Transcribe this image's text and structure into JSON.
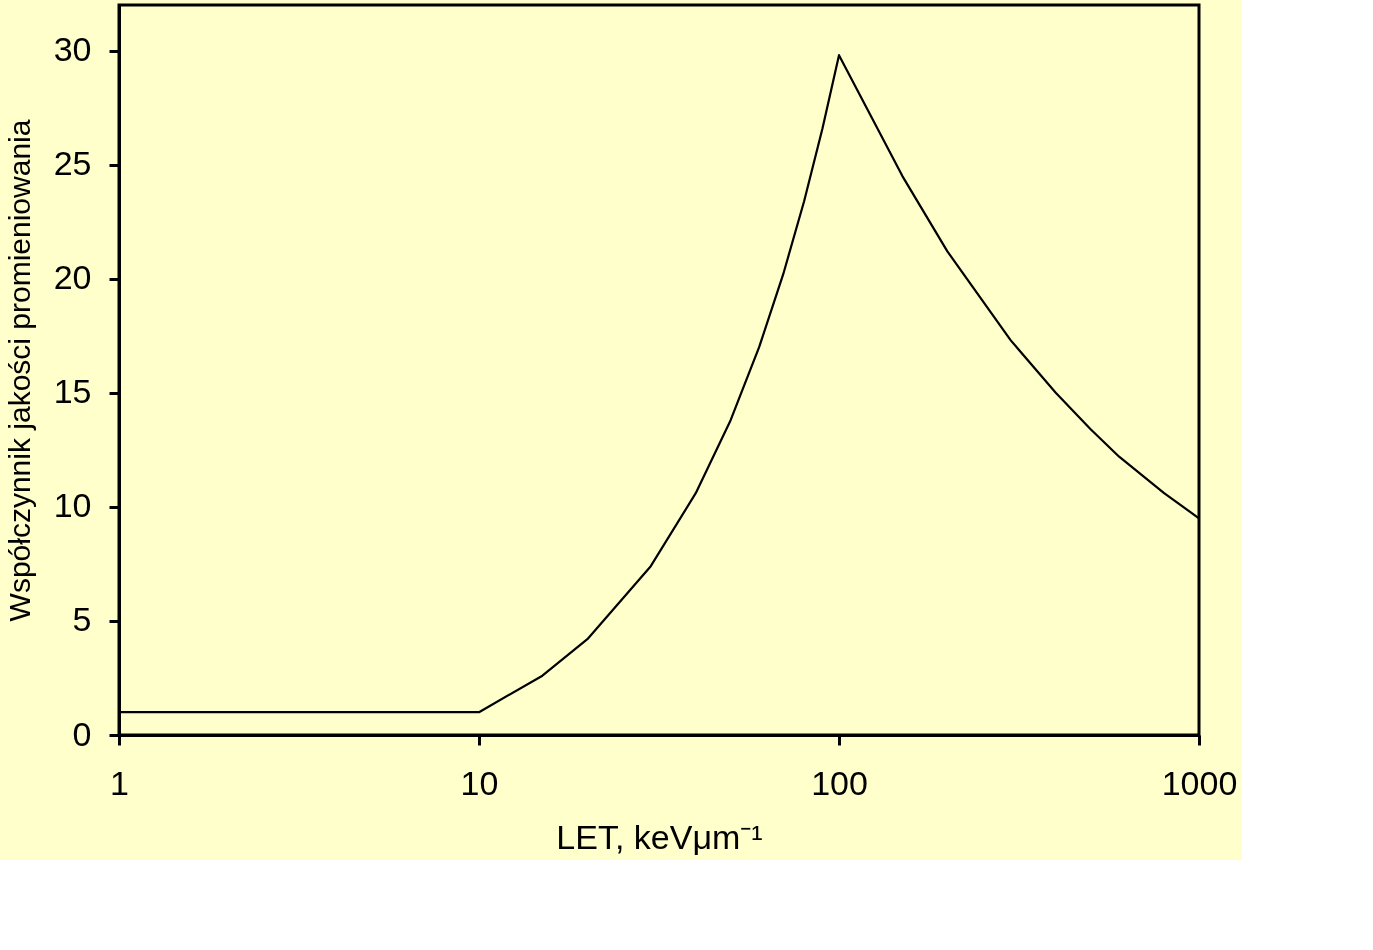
{
  "chart_data": {
    "type": "line",
    "xlabel": "LET,  keVμm⁻¹",
    "ylabel": "Współczynnik jakości promieniowania",
    "log": "x",
    "xlim": [
      1,
      1000
    ],
    "xticks": [
      1,
      10,
      100,
      1000
    ],
    "ylim": [
      0,
      32
    ],
    "yticks": [
      0,
      5,
      10,
      15,
      20,
      25,
      30
    ],
    "grid": false,
    "marker": "none",
    "line_style": "solid",
    "series": [
      {
        "color": "#000000",
        "x": [
          1,
          10,
          15,
          20,
          30,
          40,
          50,
          60,
          70,
          80,
          90,
          100,
          150,
          200,
          300,
          400,
          500,
          600,
          800,
          1000
        ],
        "values": [
          1,
          1,
          2.6,
          4.2,
          7.4,
          10.6,
          13.8,
          17,
          20.2,
          23.4,
          26.6,
          29.8,
          24.5,
          21.2,
          17.3,
          15,
          13.4,
          12.2,
          10.6,
          9.5
        ]
      }
    ]
  }
}
